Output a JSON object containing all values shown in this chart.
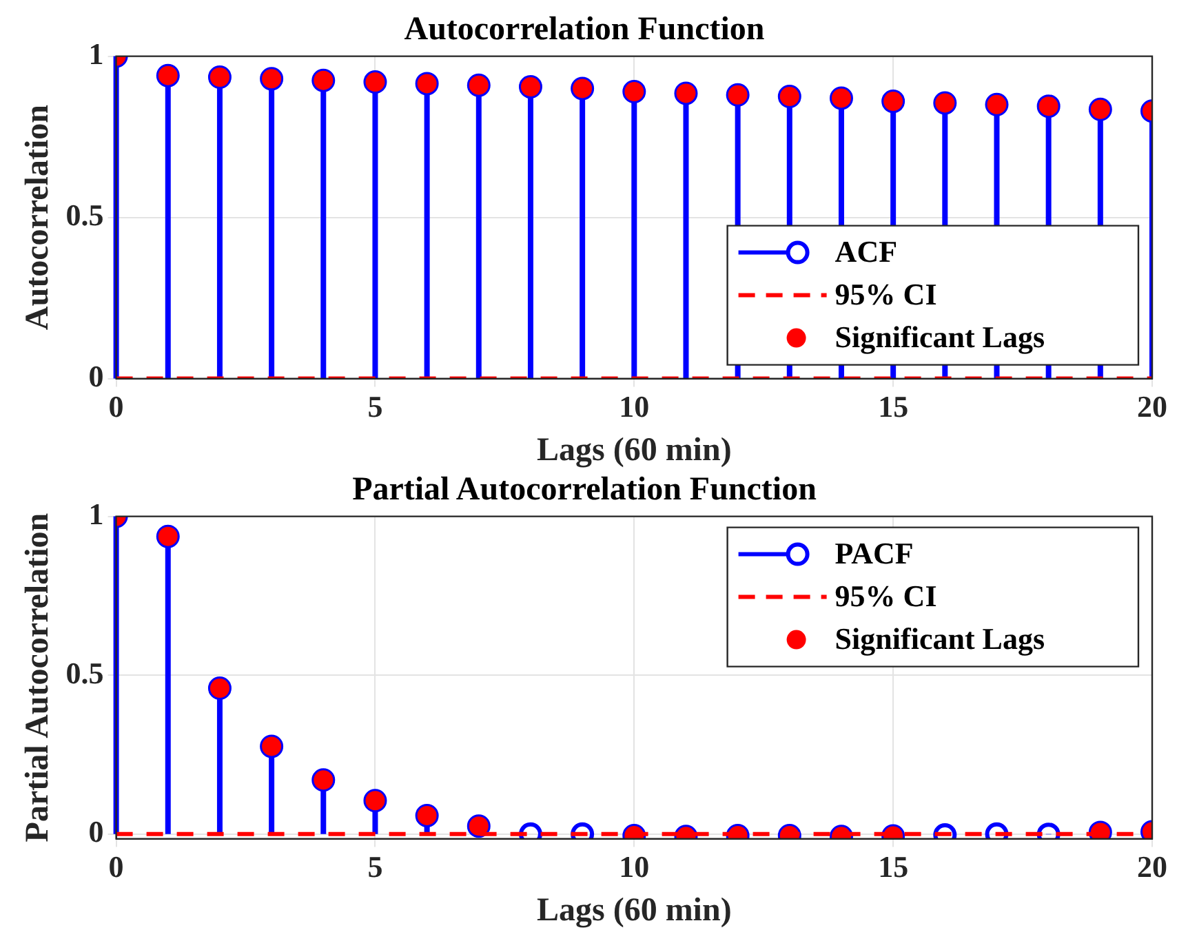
{
  "chart_data": [
    {
      "type": "lollipop",
      "title": "Autocorrelation Function",
      "xlabel": "Lags (60 min)",
      "ylabel": "Autocorrelation",
      "x": [
        0,
        1,
        2,
        3,
        4,
        5,
        6,
        7,
        8,
        9,
        10,
        11,
        12,
        13,
        14,
        15,
        16,
        17,
        18,
        19,
        20
      ],
      "xlim": [
        0,
        20
      ],
      "xticks": [
        0,
        5,
        10,
        15,
        20
      ],
      "ylim": [
        0,
        1
      ],
      "yticks": [
        0,
        0.5,
        1
      ],
      "grid": true,
      "legend": "bottom right",
      "series": [
        {
          "name": "ACF",
          "color": "#0000ff",
          "marker": "circle",
          "values": [
            1,
            0.94,
            0.935,
            0.93,
            0.925,
            0.92,
            0.915,
            0.91,
            0.905,
            0.9,
            0.89,
            0.885,
            0.88,
            0.875,
            0.87,
            0.86,
            0.855,
            0.85,
            0.845,
            0.835,
            0.83
          ]
        },
        {
          "name": "95% CI",
          "type": "line",
          "color": "#ff0000",
          "line_style": "dashed",
          "marker": "none",
          "x": [
            0,
            20
          ],
          "values": [
            0,
            0
          ]
        },
        {
          "name": "Significant Lags",
          "type": "scatter",
          "color": "#ff0000",
          "marker": "circle",
          "x": [
            0,
            1,
            2,
            3,
            4,
            5,
            6,
            7,
            8,
            9,
            10,
            11,
            12,
            13,
            14,
            15,
            16,
            17,
            18,
            19,
            20
          ],
          "values": [
            1,
            0.94,
            0.935,
            0.93,
            0.925,
            0.92,
            0.915,
            0.91,
            0.905,
            0.9,
            0.89,
            0.885,
            0.88,
            0.875,
            0.87,
            0.86,
            0.855,
            0.85,
            0.845,
            0.835,
            0.83
          ]
        }
      ]
    },
    {
      "type": "lollipop",
      "title": "Partial Autocorrelation Function",
      "xlabel": "Lags (60 min)",
      "ylabel": "Partial Autocorrelation",
      "x": [
        0,
        1,
        2,
        3,
        4,
        5,
        6,
        7,
        8,
        9,
        10,
        11,
        12,
        13,
        14,
        15,
        16,
        17,
        18,
        19,
        20
      ],
      "xlim": [
        0,
        20
      ],
      "xticks": [
        0,
        5,
        10,
        15,
        20
      ],
      "ylim": [
        -0.015,
        1
      ],
      "yticks": [
        0,
        0.5,
        1
      ],
      "grid": true,
      "legend": "top right",
      "series": [
        {
          "name": "PACF",
          "color": "#0000ff",
          "marker": "circle",
          "values": [
            1,
            0.937,
            0.459,
            0.276,
            0.17,
            0.105,
            0.058,
            0.025,
            0,
            0,
            -0.005,
            -0.008,
            -0.005,
            -0.005,
            -0.008,
            -0.006,
            -0.003,
            0,
            -0.001,
            0.005,
            0.007
          ]
        },
        {
          "name": "95% CI",
          "type": "line",
          "color": "#ff0000",
          "line_style": "dashed",
          "marker": "none",
          "x": [
            0,
            20
          ],
          "values": [
            0,
            0
          ]
        },
        {
          "name": "Significant Lags",
          "type": "scatter",
          "color": "#ff0000",
          "marker": "circle",
          "x": [
            0,
            1,
            2,
            3,
            4,
            5,
            6,
            7,
            10,
            11,
            12,
            13,
            14,
            15,
            19,
            20
          ],
          "values": [
            1,
            0.937,
            0.459,
            0.276,
            0.17,
            0.105,
            0.058,
            0.025,
            -0.005,
            -0.008,
            -0.005,
            -0.005,
            -0.008,
            -0.006,
            0.005,
            0.007
          ]
        }
      ]
    }
  ]
}
